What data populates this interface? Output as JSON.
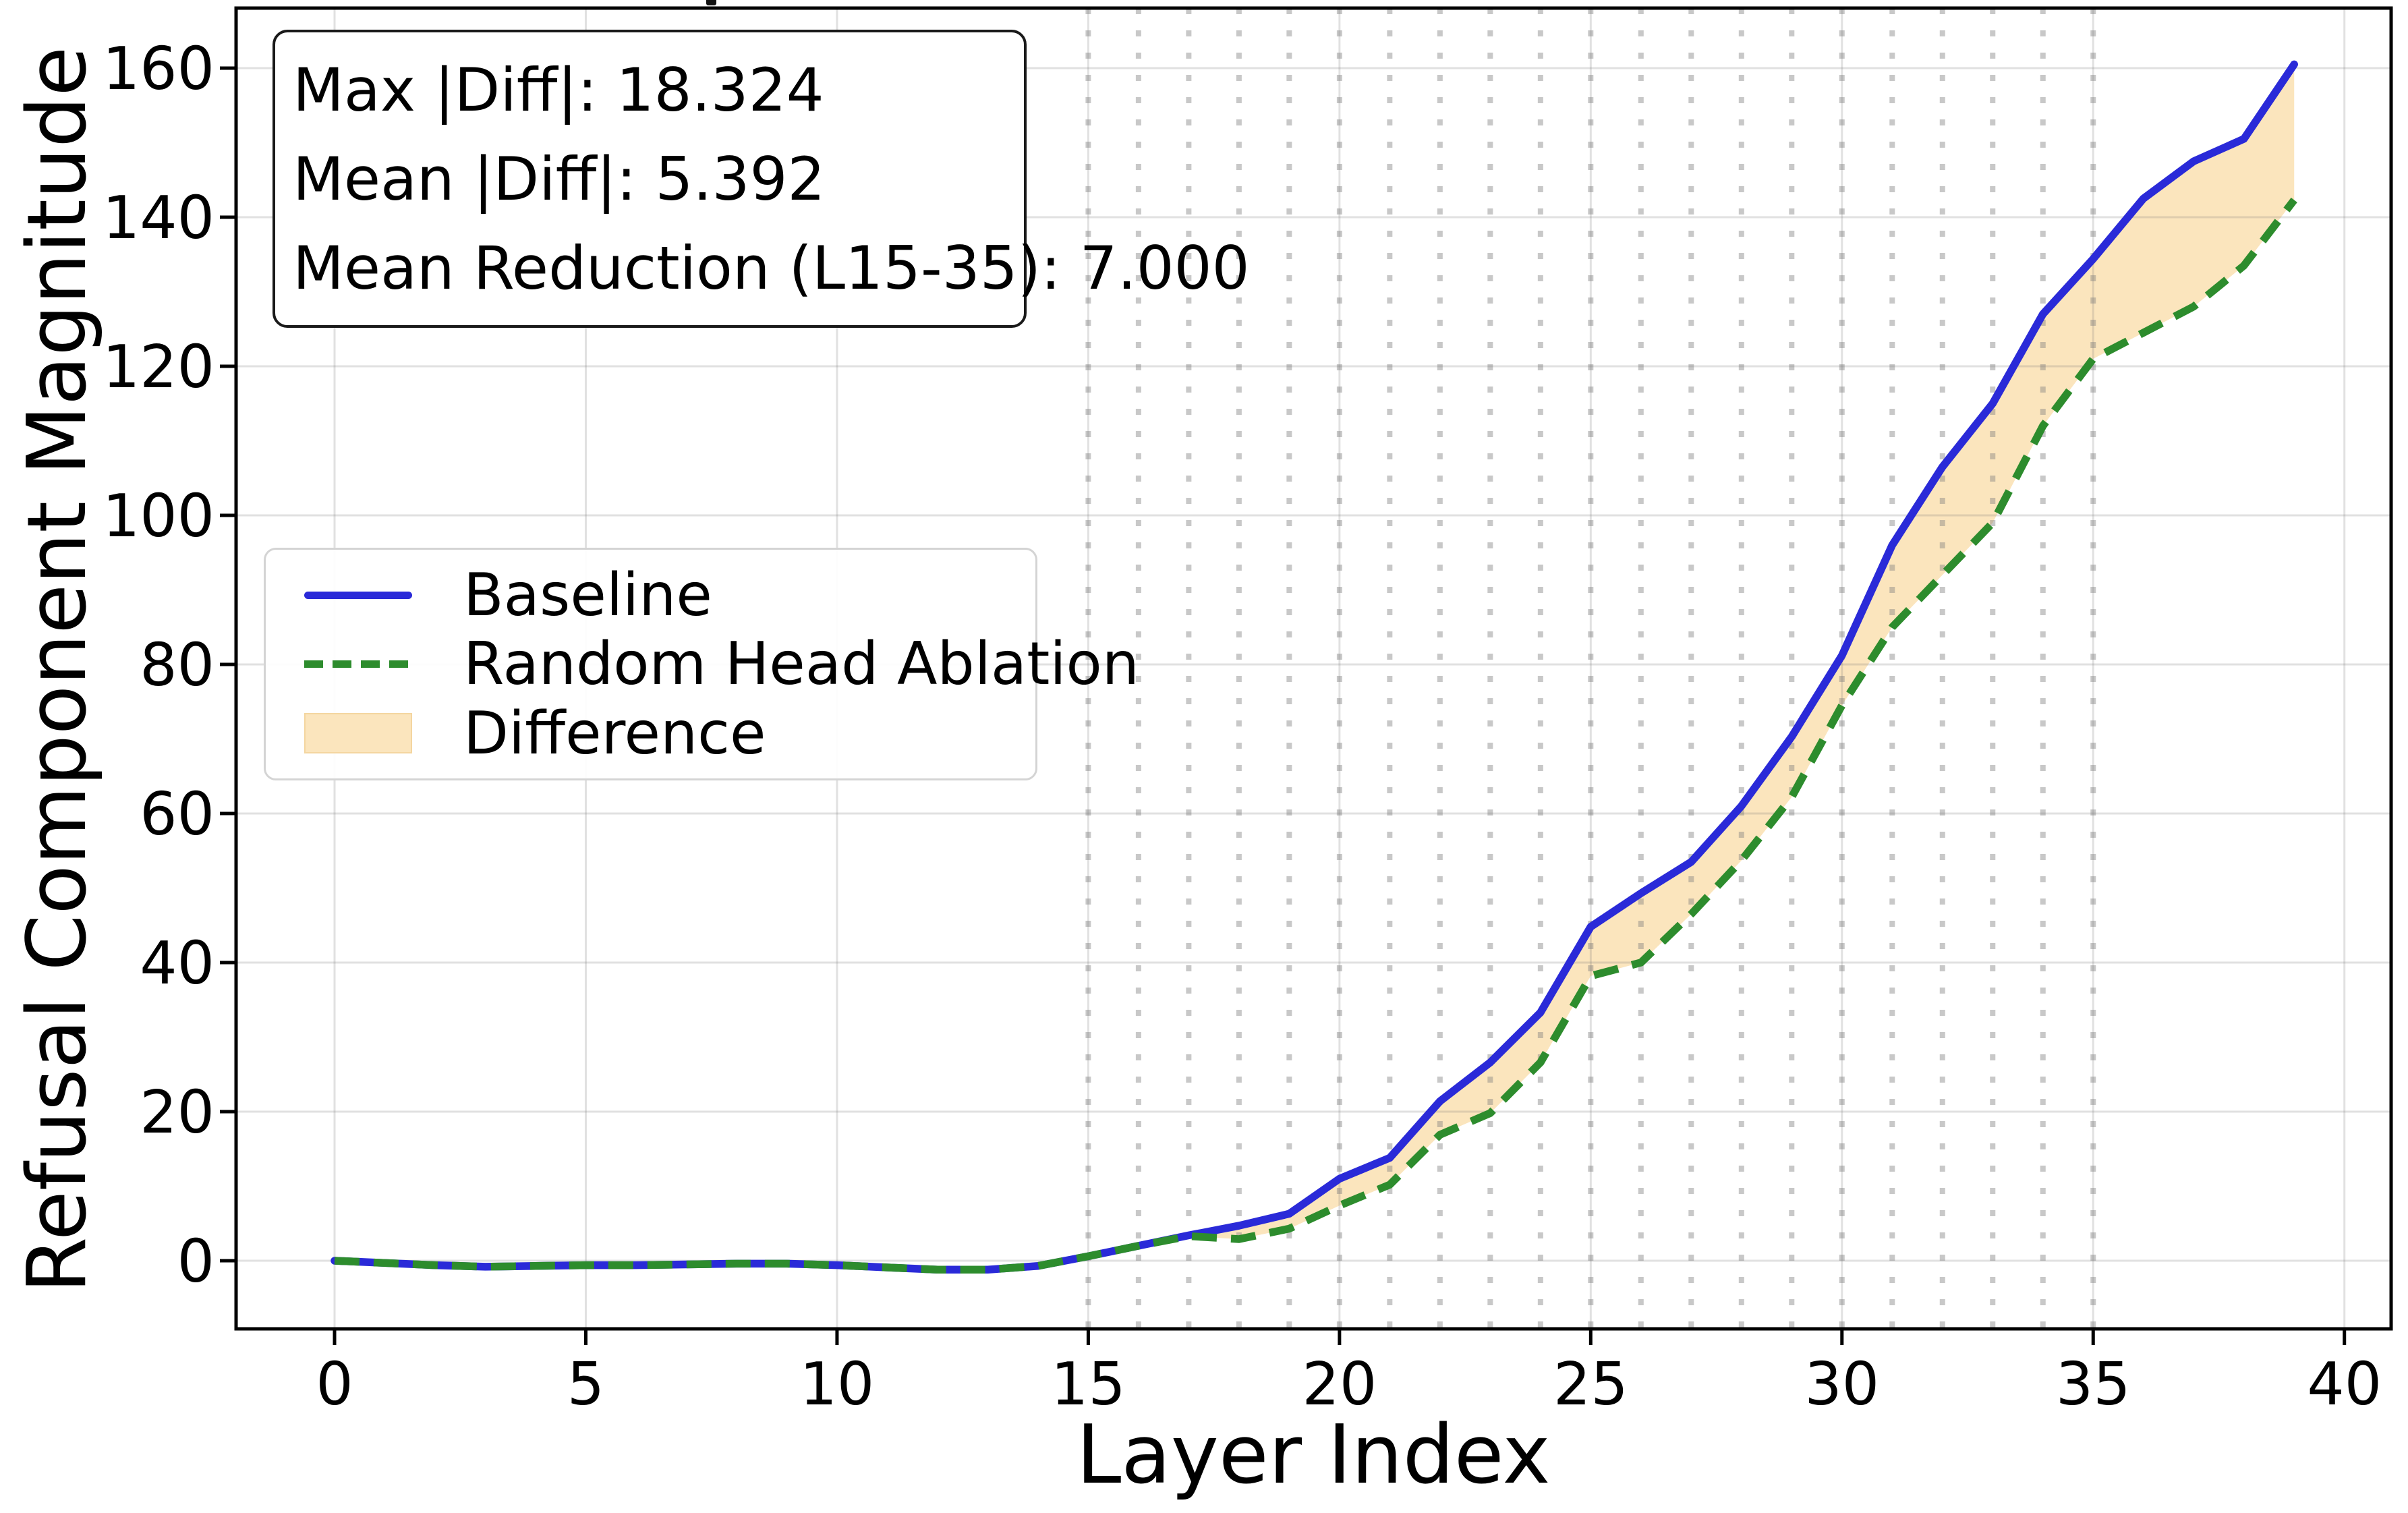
{
  "figure": {
    "stats_box": {
      "lines": [
        "Max |Diff|: 18.324",
        "Mean |Diff|: 5.392",
        "Mean Reduction (L15-35): 7.000"
      ]
    },
    "colors": {
      "background": "#ffffff",
      "spine": "#000000",
      "grid": "rgba(120,120,120,0.22)",
      "ablation_marker": "rgba(125,125,125,0.42)",
      "stats_border": "#1a1a1a",
      "legend_border": "#d4d4d4"
    }
  },
  "chart_data": {
    "type": "line",
    "title": "",
    "xlabel": "Layer Index",
    "ylabel": "Refusal Component Magnitude",
    "x": [
      0,
      1,
      2,
      3,
      4,
      5,
      6,
      7,
      8,
      9,
      10,
      11,
      12,
      13,
      14,
      15,
      16,
      17,
      18,
      19,
      20,
      21,
      22,
      23,
      24,
      25,
      26,
      27,
      28,
      29,
      30,
      31,
      32,
      33,
      34,
      35,
      36,
      37,
      38,
      39
    ],
    "series": [
      {
        "name": "Baseline",
        "color": "#2a2ad8",
        "style": "solid",
        "values": [
          0.0,
          -0.3,
          -0.6,
          -0.8,
          -0.7,
          -0.6,
          -0.6,
          -0.5,
          -0.4,
          -0.4,
          -0.6,
          -0.9,
          -1.2,
          -1.2,
          -0.7,
          0.6,
          2.0,
          3.4,
          4.7,
          6.3,
          11.0,
          13.8,
          21.4,
          26.6,
          33.3,
          44.8,
          49.3,
          53.5,
          61.0,
          70.3,
          81.2,
          96.0,
          106.5,
          115.0,
          127.0,
          134.4,
          142.5,
          147.5,
          150.5,
          160.5
        ]
      },
      {
        "name": "Random Head Ablation",
        "color": "#2d8c2d",
        "style": "dashed",
        "values": [
          0.0,
          -0.3,
          -0.6,
          -0.8,
          -0.7,
          -0.6,
          -0.6,
          -0.5,
          -0.4,
          -0.4,
          -0.6,
          -0.9,
          -1.2,
          -1.2,
          -0.7,
          0.6,
          2.0,
          3.3,
          2.9,
          4.3,
          7.4,
          10.2,
          16.9,
          19.8,
          26.6,
          38.2,
          40.0,
          46.5,
          53.7,
          62.2,
          74.5,
          85.0,
          92.0,
          99.0,
          112.0,
          121.0,
          124.5,
          128.0,
          133.5,
          142.3
        ]
      }
    ],
    "fill_between": {
      "label": "Difference",
      "color": "#fbe5bd",
      "edge": "rgba(243,212,156,0.9)"
    },
    "ablation_marker_layers": [
      15,
      16,
      17,
      18,
      19,
      20,
      21,
      22,
      23,
      24,
      25,
      26,
      27,
      28,
      29,
      30,
      31,
      32,
      33,
      34,
      35
    ],
    "x_ticks": [
      0,
      5,
      10,
      15,
      20,
      25,
      30,
      35,
      40
    ],
    "y_ticks": [
      0,
      20,
      40,
      60,
      80,
      100,
      120,
      140,
      160
    ],
    "xlim": [
      -1.96,
      40.93
    ],
    "ylim": [
      -9.14,
      168.05
    ],
    "grid": true,
    "legend_position": "center left",
    "stats": {
      "max_abs_diff": 18.324,
      "mean_abs_diff": 5.392,
      "mean_reduction_L15_35": 7.0
    }
  }
}
